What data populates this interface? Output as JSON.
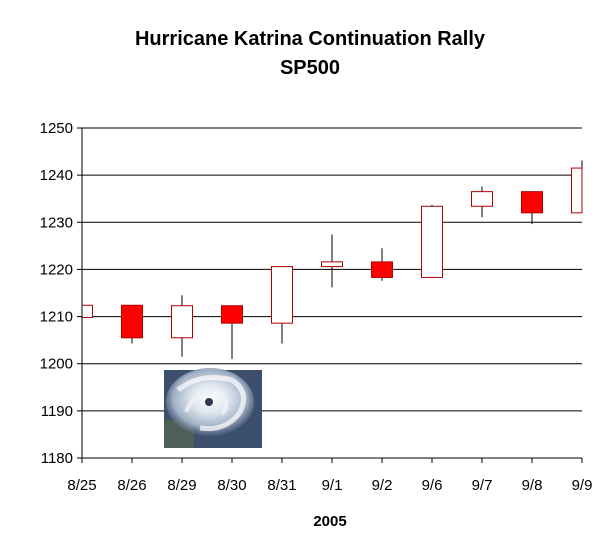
{
  "chart_data": {
    "type": "candlestick",
    "title": "Hurricane Katrina Continuation Rally",
    "subtitle": "SP500",
    "xlabel": "2005",
    "ylabel": "",
    "ylim": [
      1180,
      1250
    ],
    "yticks": [
      1180,
      1190,
      1200,
      1210,
      1220,
      1230,
      1240,
      1250
    ],
    "grid": true,
    "categories": [
      "8/25",
      "8/26",
      "8/29",
      "8/30",
      "8/31",
      "9/1",
      "9/2",
      "9/6",
      "9/7",
      "9/8",
      "9/9"
    ],
    "candles": [
      {
        "open": 1209.8,
        "close": 1212.4,
        "high": 1212.4,
        "low": 1209.8
      },
      {
        "open": 1212.4,
        "close": 1205.5,
        "high": 1212.4,
        "low": 1204.3
      },
      {
        "open": 1205.5,
        "close": 1212.3,
        "high": 1214.5,
        "low": 1201.5
      },
      {
        "open": 1212.3,
        "close": 1208.6,
        "high": 1212.3,
        "low": 1201.0
      },
      {
        "open": 1208.6,
        "close": 1220.6,
        "high": 1220.6,
        "low": 1204.3
      },
      {
        "open": 1220.6,
        "close": 1221.6,
        "high": 1227.4,
        "low": 1216.2
      },
      {
        "open": 1221.6,
        "close": 1218.3,
        "high": 1224.5,
        "low": 1217.6
      },
      {
        "open": 1218.3,
        "close": 1233.4,
        "high": 1233.7,
        "low": 1218.3
      },
      {
        "open": 1233.4,
        "close": 1236.5,
        "high": 1237.6,
        "low": 1231.1
      },
      {
        "open": 1236.5,
        "close": 1232.0,
        "high": 1236.5,
        "low": 1229.6
      },
      {
        "open": 1232.0,
        "close": 1241.5,
        "high": 1243.1,
        "low": 1232.0
      }
    ],
    "colors": {
      "up_fill": "#ffffff",
      "down_fill": "#ff0000",
      "body_stroke": "#b00000",
      "wick": "#000000",
      "grid": "#000000"
    },
    "image_icon": "hurricane-satellite-icon"
  }
}
